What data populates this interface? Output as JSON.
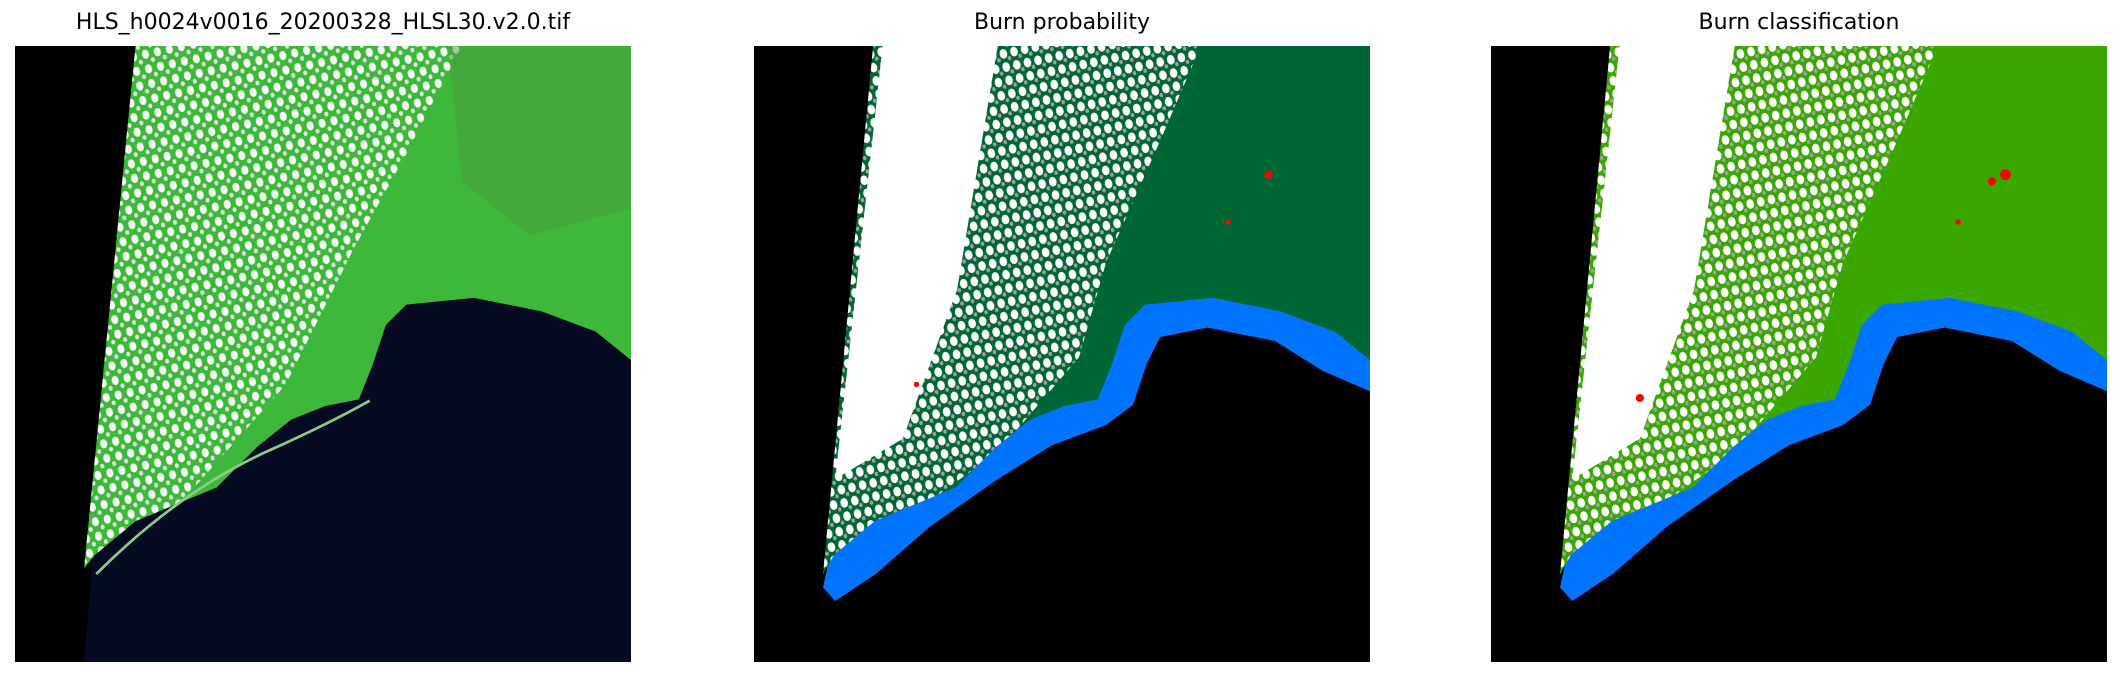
{
  "figure": {
    "panels": [
      {
        "title": "HLS_h0024v0016_20200328_HLSL30.v2.0.tif",
        "kind": "rgb-composite"
      },
      {
        "title": "Burn probability",
        "kind": "probability-map"
      },
      {
        "title": "Burn classification",
        "kind": "classification-map"
      }
    ],
    "colors": {
      "nodata": "#000000",
      "rgb_land": "#3db83a",
      "rgb_sea": "#060a22",
      "cloud": "#ffffff",
      "cloud_shadow": "#a0a0a0",
      "water": "#0073ff",
      "shallow_water": "#00e5ff",
      "prob_unburned": "#006633",
      "class_unburned": "#3aa600",
      "burned": "#ff0000"
    },
    "axes": "off"
  }
}
